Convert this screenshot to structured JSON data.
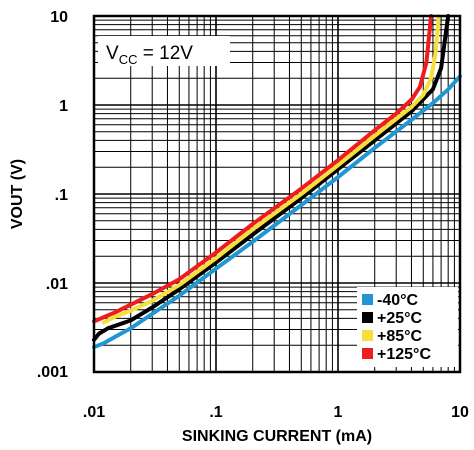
{
  "chart_data": {
    "type": "line",
    "xscale": "log",
    "yscale": "log",
    "xlim": [
      0.01,
      10
    ],
    "ylim": [
      0.001,
      10
    ],
    "xlabel": "SINKING CURRENT (mA)",
    "ylabel": "VOUT (V)",
    "xticks": [
      {
        "value": 0.01,
        "label": ".01"
      },
      {
        "value": 0.1,
        "label": ".1"
      },
      {
        "value": 1,
        "label": "1"
      },
      {
        "value": 10,
        "label": "10"
      }
    ],
    "yticks": [
      {
        "value": 0.001,
        "label": ".001"
      },
      {
        "value": 0.01,
        "label": ".01"
      },
      {
        "value": 0.1,
        "label": ".1"
      },
      {
        "value": 1,
        "label": "1"
      },
      {
        "value": 10,
        "label": "10"
      }
    ],
    "grid": true,
    "legend_position": "bottom-right",
    "annotation": {
      "main": "V",
      "sub": "CC",
      "rest": " = 12V"
    },
    "series": [
      {
        "name": "-40°C",
        "color": "#2196d3",
        "x": [
          0.01,
          0.012,
          0.015,
          0.02,
          0.03,
          0.05,
          0.1,
          0.2,
          0.5,
          1,
          2,
          4,
          6,
          8,
          10
        ],
        "y": [
          0.0019,
          0.0021,
          0.0025,
          0.0031,
          0.0045,
          0.0072,
          0.0145,
          0.029,
          0.075,
          0.155,
          0.33,
          0.68,
          1.05,
          1.5,
          2.1
        ]
      },
      {
        "name": "+25°C",
        "color": "#000000",
        "x": [
          0.01,
          0.011,
          0.013,
          0.02,
          0.03,
          0.05,
          0.1,
          0.2,
          0.5,
          1,
          2,
          4,
          6,
          7,
          7.6,
          8
        ],
        "y": [
          0.0023,
          0.0027,
          0.0031,
          0.0038,
          0.0053,
          0.0085,
          0.017,
          0.035,
          0.09,
          0.19,
          0.4,
          0.85,
          1.5,
          2.6,
          6,
          10
        ]
      },
      {
        "name": "+85°C",
        "color": "#f6df3c",
        "x": [
          0.012,
          0.015,
          0.02,
          0.03,
          0.05,
          0.1,
          0.2,
          0.5,
          1,
          2,
          4,
          5,
          5.8,
          6.3,
          6.7
        ],
        "y": [
          0.0036,
          0.0042,
          0.0049,
          0.0063,
          0.0095,
          0.019,
          0.04,
          0.1,
          0.21,
          0.45,
          0.95,
          1.3,
          2.0,
          3.8,
          10
        ]
      },
      {
        "name": "+125°C",
        "color": "#ee1c1c",
        "x": [
          0.01,
          0.015,
          0.02,
          0.03,
          0.05,
          0.1,
          0.2,
          0.5,
          1,
          2,
          3,
          4,
          4.7,
          5.3,
          5.8
        ],
        "y": [
          0.0037,
          0.0047,
          0.0057,
          0.0075,
          0.011,
          0.022,
          0.046,
          0.115,
          0.24,
          0.52,
          0.8,
          1.15,
          1.6,
          3.0,
          10
        ]
      }
    ]
  }
}
